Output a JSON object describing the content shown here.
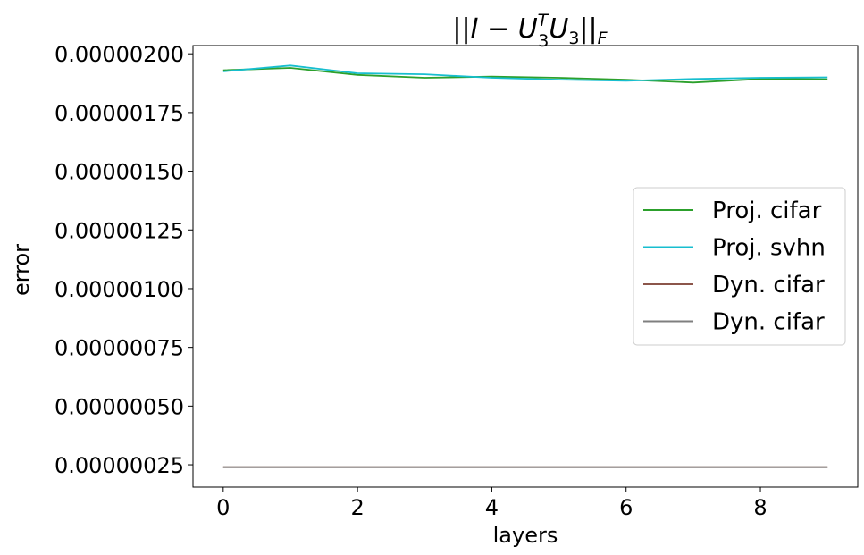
{
  "chart_data": {
    "type": "line",
    "title": "||I - U_3^T U_3||_F",
    "title_parts": {
      "prefix": "||I − U",
      "sup": "T",
      "sub1": "3",
      "mid": "U",
      "sub2": "3",
      "suffix": "||",
      "sub3": "F"
    },
    "xlabel": "layers",
    "ylabel": "error",
    "xlim": [
      -0.45,
      9.45
    ],
    "ylim": [
      1.55e-07,
      2.035e-06
    ],
    "x_ticks": [
      0,
      2,
      4,
      6,
      8
    ],
    "x_tick_labels": [
      "0",
      "2",
      "4",
      "6",
      "8"
    ],
    "y_ticks": [
      2.5e-07,
      5e-07,
      7.5e-07,
      1e-06,
      1.25e-06,
      1.5e-06,
      1.75e-06,
      2e-06
    ],
    "y_tick_labels": [
      "0.00000025",
      "0.00000050",
      "0.00000075",
      "0.00000100",
      "0.00000125",
      "0.00000150",
      "0.00000175",
      "0.00000200"
    ],
    "grid": false,
    "legend_position": "center-right",
    "x": [
      0,
      1,
      2,
      3,
      4,
      5,
      6,
      7,
      8,
      9
    ],
    "series": [
      {
        "name": "Proj. cifar",
        "color": "#2ca02c",
        "values": [
          1.93e-06,
          1.94e-06,
          1.91e-06,
          1.898e-06,
          1.903e-06,
          1.898e-06,
          1.89e-06,
          1.878e-06,
          1.893e-06,
          1.892e-06
        ]
      },
      {
        "name": "Proj. svhn",
        "color": "#17becf",
        "values": [
          1.925e-06,
          1.95e-06,
          1.917e-06,
          1.913e-06,
          1.898e-06,
          1.89e-06,
          1.885e-06,
          1.893e-06,
          1.898e-06,
          1.9e-06
        ]
      },
      {
        "name": "Dyn. cifar",
        "color": "#8c564b",
        "values": [
          2.4e-07,
          2.4e-07,
          2.4e-07,
          2.4e-07,
          2.4e-07,
          2.4e-07,
          2.4e-07,
          2.4e-07,
          2.4e-07,
          2.4e-07
        ]
      },
      {
        "name": "Dyn. cifar",
        "color": "#7f7f7f",
        "values": [
          2.4e-07,
          2.4e-07,
          2.4e-07,
          2.4e-07,
          2.4e-07,
          2.4e-07,
          2.4e-07,
          2.4e-07,
          2.4e-07,
          2.4e-07
        ]
      }
    ]
  }
}
